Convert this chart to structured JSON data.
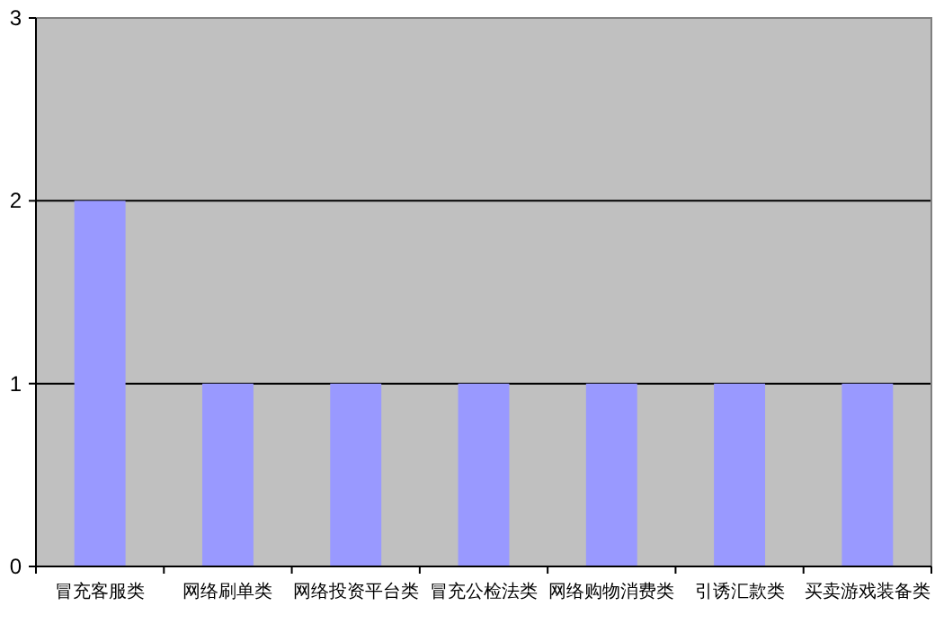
{
  "chart_data": {
    "type": "bar",
    "categories": [
      "冒充客服类",
      "网络刷单类",
      "网络投资平台类",
      "冒充公检法类",
      "网络购物消费类",
      "引诱汇款类",
      "买卖游戏装备类"
    ],
    "values": [
      2,
      1,
      1,
      1,
      1,
      1,
      1
    ],
    "color": "#9999ff",
    "ylim": [
      0,
      3
    ],
    "yticks": [
      0,
      1,
      2,
      3
    ],
    "grid": "y"
  }
}
